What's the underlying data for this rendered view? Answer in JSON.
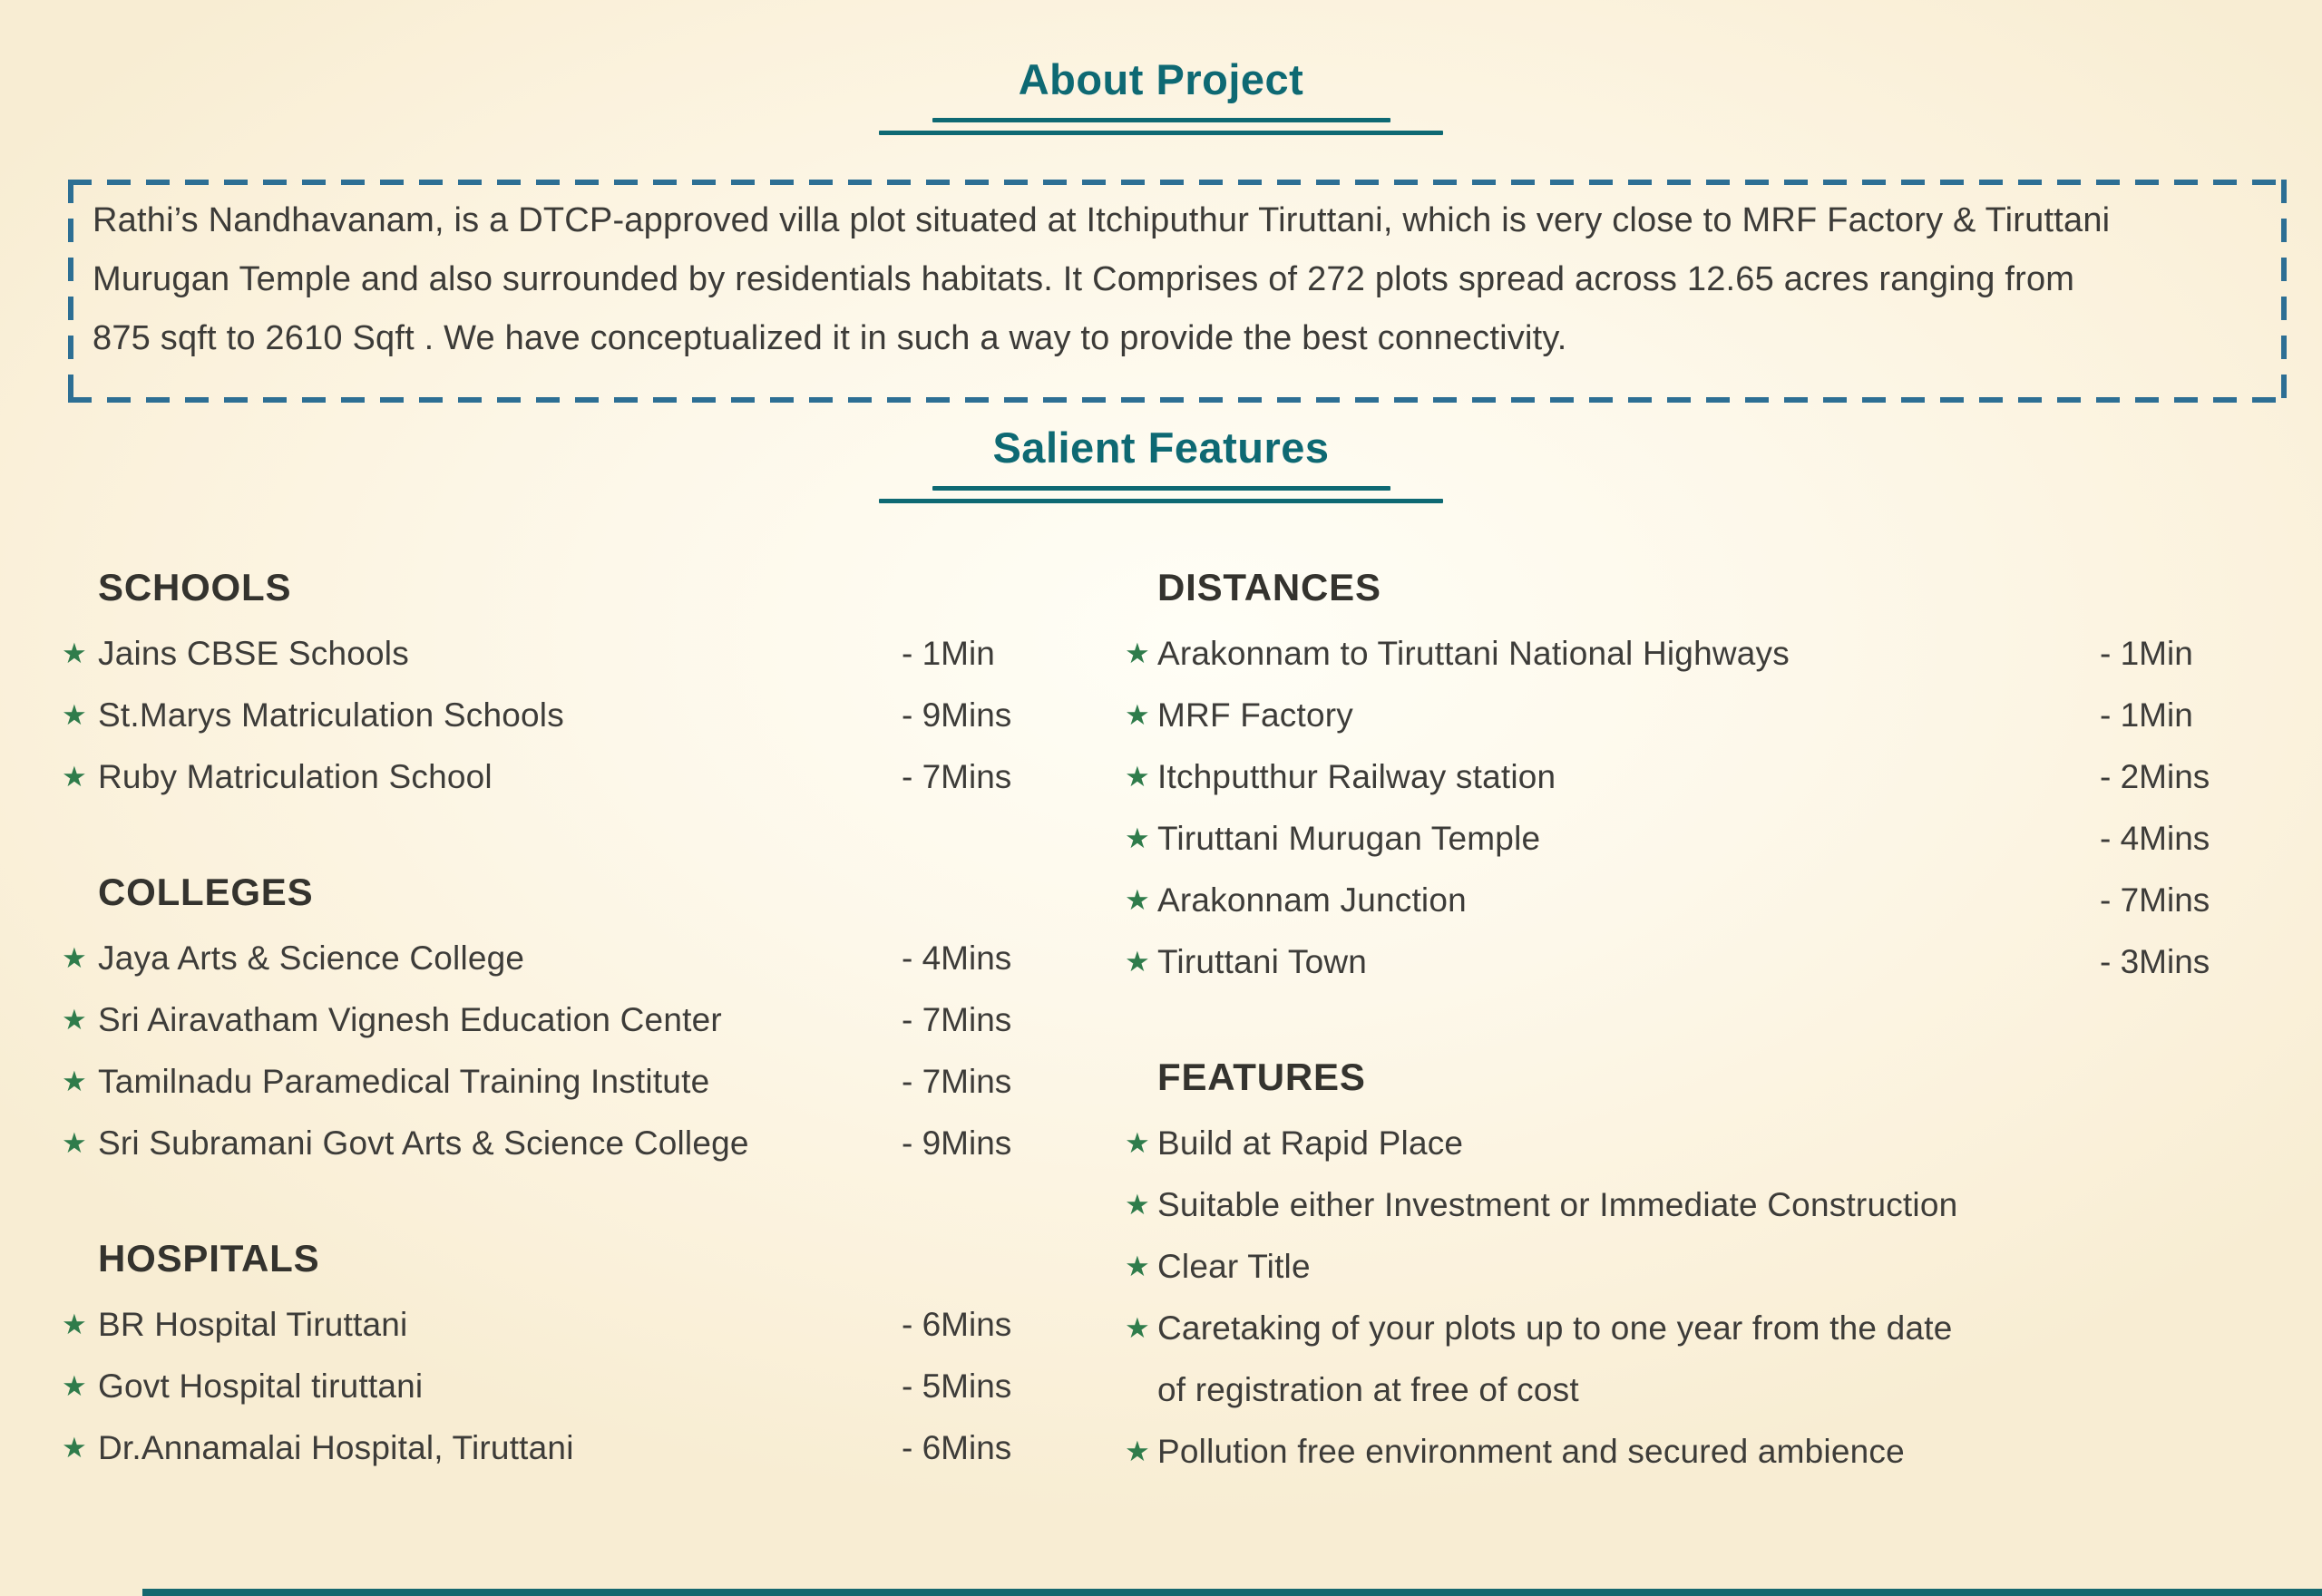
{
  "page": {
    "background_color": "#fbf3df",
    "accent_teal": "#0e6973",
    "dash_border_color": "#2d6f94",
    "star_color": "#2f7c4b",
    "heading_color": "#34332e",
    "text_color": "#3d3c39",
    "bottom_bar_color": "#16686f"
  },
  "about": {
    "title": "About Project",
    "description_lines": [
      "Rathi’s Nandhavanam, is a DTCP-approved villa plot situated at Itchiputhur Tiruttani, which is very close to MRF Factory & Tiruttani",
      "Murugan Temple and also surrounded by residentials habitats. It Comprises of 272 plots spread across 12.65 acres ranging from",
      "875 sqft to 2610 Sqft . We have conceptualized it in such a way to provide the best  connectivity."
    ]
  },
  "salient": {
    "title": "Salient Features",
    "left_sections": [
      {
        "heading": "SCHOOLS",
        "items": [
          {
            "label": "Jains CBSE Schools",
            "time": "- 1Min"
          },
          {
            "label": "St.Marys Matriculation Schools",
            "time": "- 9Mins"
          },
          {
            "label": "Ruby Matriculation School",
            "time": "- 7Mins"
          }
        ]
      },
      {
        "heading": "COLLEGES",
        "items": [
          {
            "label": "Jaya Arts & Science College",
            "time": "- 4Mins"
          },
          {
            "label": "Sri Airavatham Vignesh Education Center",
            "time": "- 7Mins"
          },
          {
            "label": "Tamilnadu Paramedical Training Institute",
            "time": "- 7Mins"
          },
          {
            "label": "Sri Subramani Govt Arts & Science College",
            "time": "- 9Mins"
          }
        ]
      },
      {
        "heading": "HOSPITALS",
        "items": [
          {
            "label": "BR Hospital Tiruttani",
            "time": "- 6Mins"
          },
          {
            "label": "Govt Hospital tiruttani",
            "time": "- 5Mins"
          },
          {
            "label": "Dr.Annamalai Hospital, Tiruttani",
            "time": "- 6Mins"
          }
        ]
      }
    ],
    "right_sections": [
      {
        "heading": "DISTANCES",
        "items": [
          {
            "label": "Arakonnam to Tiruttani National Highways",
            "time": "- 1Min"
          },
          {
            "label": "MRF Factory",
            "time": "- 1Min"
          },
          {
            "label": "Itchputthur Railway station",
            "time": "- 2Mins"
          },
          {
            "label": "Tiruttani Murugan Temple",
            "time": "- 4Mins"
          },
          {
            "label": "Arakonnam Junction",
            "time": "- 7Mins"
          },
          {
            "label": "Tiruttani Town",
            "time": "- 3Mins"
          }
        ]
      },
      {
        "heading": "FEATURES",
        "items": [
          {
            "label_lines": [
              "Build at Rapid Place"
            ]
          },
          {
            "label_lines": [
              "Suitable either Investment or Immediate Construction"
            ]
          },
          {
            "label_lines": [
              "Clear Title"
            ]
          },
          {
            "label_lines": [
              "Caretaking of your plots up to one year from the date",
              "of registration at free of cost"
            ]
          },
          {
            "label_lines": [
              "Pollution free environment and secured ambience"
            ]
          }
        ]
      }
    ]
  },
  "icons": {
    "bullet": {
      "name": "star-icon",
      "glyph": "★"
    }
  }
}
